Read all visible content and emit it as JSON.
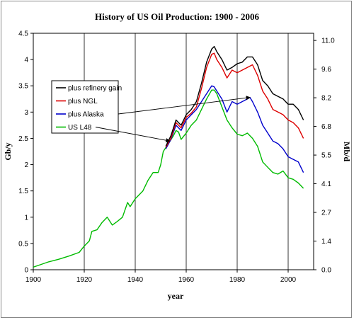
{
  "chart_data": {
    "type": "line",
    "title": "History of US Oil Production: 1900 - 2006",
    "xlabel": "year",
    "ylabel": "Gb/y",
    "ylabel_right": "Mb/d",
    "xlim": [
      1900,
      2010
    ],
    "ylim": [
      0,
      4.5
    ],
    "x_ticks": [
      "1900",
      "1920",
      "1940",
      "1960",
      "1980",
      "2000"
    ],
    "y_ticks": [
      "0",
      "0.5",
      "1",
      "1.5",
      "2",
      "2.5",
      "3",
      "3.5",
      "4",
      "4.5"
    ],
    "y_right_ticks": [
      "0.0",
      "1.4",
      "2.7",
      "4.1",
      "5.5",
      "6.8",
      "8.2",
      "9.6",
      "11.0"
    ],
    "grid": "vertical",
    "legend_position": "left-middle",
    "series": [
      {
        "name": "plus refinery gain",
        "color": "#000000",
        "points": [
          [
            1952,
            2.35
          ],
          [
            1954,
            2.55
          ],
          [
            1956,
            2.85
          ],
          [
            1958,
            2.75
          ],
          [
            1960,
            2.95
          ],
          [
            1962,
            3.05
          ],
          [
            1964,
            3.2
          ],
          [
            1966,
            3.55
          ],
          [
            1968,
            3.95
          ],
          [
            1970,
            4.2
          ],
          [
            1971,
            4.25
          ],
          [
            1972,
            4.15
          ],
          [
            1974,
            4.0
          ],
          [
            1976,
            3.8
          ],
          [
            1978,
            3.85
          ],
          [
            1980,
            3.92
          ],
          [
            1982,
            3.95
          ],
          [
            1984,
            4.05
          ],
          [
            1986,
            4.05
          ],
          [
            1988,
            3.9
          ],
          [
            1990,
            3.6
          ],
          [
            1992,
            3.5
          ],
          [
            1994,
            3.35
          ],
          [
            1996,
            3.3
          ],
          [
            1998,
            3.25
          ],
          [
            2000,
            3.15
          ],
          [
            2002,
            3.15
          ],
          [
            2004,
            3.05
          ],
          [
            2006,
            2.85
          ]
        ]
      },
      {
        "name": "plus NGL",
        "color": "#dd0000",
        "points": [
          [
            1952,
            2.33
          ],
          [
            1954,
            2.5
          ],
          [
            1956,
            2.8
          ],
          [
            1958,
            2.7
          ],
          [
            1960,
            2.9
          ],
          [
            1962,
            2.98
          ],
          [
            1964,
            3.1
          ],
          [
            1966,
            3.45
          ],
          [
            1968,
            3.85
          ],
          [
            1970,
            4.1
          ],
          [
            1971,
            4.12
          ],
          [
            1972,
            4.0
          ],
          [
            1974,
            3.85
          ],
          [
            1976,
            3.65
          ],
          [
            1978,
            3.8
          ],
          [
            1980,
            3.75
          ],
          [
            1982,
            3.8
          ],
          [
            1984,
            3.85
          ],
          [
            1986,
            3.9
          ],
          [
            1988,
            3.7
          ],
          [
            1990,
            3.4
          ],
          [
            1992,
            3.25
          ],
          [
            1994,
            3.05
          ],
          [
            1996,
            3.0
          ],
          [
            1998,
            2.95
          ],
          [
            2000,
            2.85
          ],
          [
            2002,
            2.8
          ],
          [
            2004,
            2.7
          ],
          [
            2006,
            2.5
          ]
        ]
      },
      {
        "name": "plus Alaska",
        "color": "#0000cc",
        "points": [
          [
            1952,
            2.3
          ],
          [
            1954,
            2.48
          ],
          [
            1956,
            2.75
          ],
          [
            1958,
            2.65
          ],
          [
            1960,
            2.85
          ],
          [
            1962,
            2.95
          ],
          [
            1964,
            3.05
          ],
          [
            1966,
            3.2
          ],
          [
            1968,
            3.35
          ],
          [
            1970,
            3.5
          ],
          [
            1971,
            3.48
          ],
          [
            1972,
            3.4
          ],
          [
            1974,
            3.25
          ],
          [
            1976,
            3.0
          ],
          [
            1978,
            3.2
          ],
          [
            1980,
            3.15
          ],
          [
            1982,
            3.2
          ],
          [
            1984,
            3.25
          ],
          [
            1985,
            3.28
          ],
          [
            1986,
            3.2
          ],
          [
            1988,
            3.0
          ],
          [
            1990,
            2.75
          ],
          [
            1992,
            2.6
          ],
          [
            1994,
            2.45
          ],
          [
            1996,
            2.4
          ],
          [
            1998,
            2.3
          ],
          [
            2000,
            2.15
          ],
          [
            2002,
            2.1
          ],
          [
            2004,
            2.05
          ],
          [
            2006,
            1.85
          ]
        ]
      },
      {
        "name": "US L48",
        "color": "#00bb00",
        "points": [
          [
            1900,
            0.05
          ],
          [
            1903,
            0.1
          ],
          [
            1906,
            0.15
          ],
          [
            1910,
            0.2
          ],
          [
            1914,
            0.26
          ],
          [
            1918,
            0.33
          ],
          [
            1920,
            0.45
          ],
          [
            1922,
            0.55
          ],
          [
            1923,
            0.73
          ],
          [
            1925,
            0.76
          ],
          [
            1927,
            0.9
          ],
          [
            1929,
            1.0
          ],
          [
            1931,
            0.85
          ],
          [
            1933,
            0.92
          ],
          [
            1935,
            1.0
          ],
          [
            1937,
            1.28
          ],
          [
            1938,
            1.2
          ],
          [
            1940,
            1.35
          ],
          [
            1941,
            1.4
          ],
          [
            1943,
            1.5
          ],
          [
            1945,
            1.7
          ],
          [
            1947,
            1.85
          ],
          [
            1949,
            1.85
          ],
          [
            1950,
            2.0
          ],
          [
            1951,
            2.25
          ],
          [
            1953,
            2.4
          ],
          [
            1955,
            2.55
          ],
          [
            1956,
            2.65
          ],
          [
            1957,
            2.62
          ],
          [
            1958,
            2.48
          ],
          [
            1960,
            2.6
          ],
          [
            1962,
            2.75
          ],
          [
            1964,
            2.85
          ],
          [
            1966,
            3.05
          ],
          [
            1968,
            3.25
          ],
          [
            1970,
            3.42
          ],
          [
            1971,
            3.42
          ],
          [
            1972,
            3.35
          ],
          [
            1974,
            3.1
          ],
          [
            1976,
            2.85
          ],
          [
            1978,
            2.7
          ],
          [
            1980,
            2.58
          ],
          [
            1982,
            2.55
          ],
          [
            1984,
            2.6
          ],
          [
            1986,
            2.5
          ],
          [
            1988,
            2.35
          ],
          [
            1990,
            2.05
          ],
          [
            1992,
            1.95
          ],
          [
            1994,
            1.85
          ],
          [
            1996,
            1.82
          ],
          [
            1998,
            1.88
          ],
          [
            2000,
            1.75
          ],
          [
            2002,
            1.72
          ],
          [
            2004,
            1.65
          ],
          [
            2006,
            1.55
          ]
        ]
      }
    ]
  }
}
